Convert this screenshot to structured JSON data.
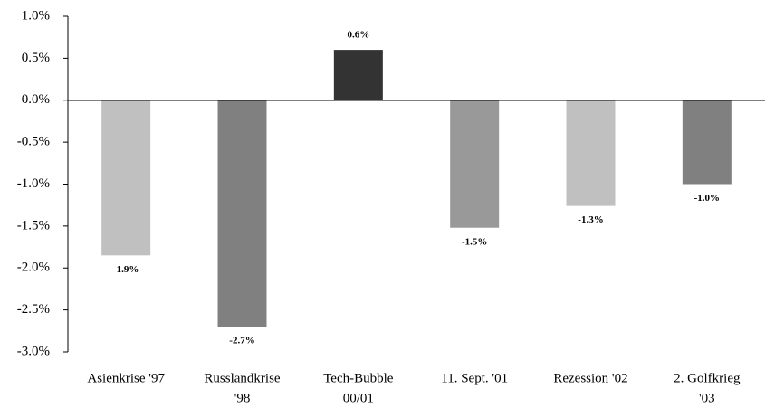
{
  "chart_data": {
    "type": "bar",
    "categories": [
      [
        "Asienkrise '97"
      ],
      [
        "Russlandkrise",
        "'98"
      ],
      [
        "Tech-Bubble",
        "00/01"
      ],
      [
        "11. Sept. '01"
      ],
      [
        "Rezession '02"
      ],
      [
        "2. Golfkrieg",
        "'03"
      ]
    ],
    "values": [
      -1.85,
      -2.7,
      0.6,
      -1.52,
      -1.26,
      -1.0
    ],
    "value_labels": [
      "-1.9%",
      "-2.7%",
      "0.6%",
      "-1.5%",
      "-1.3%",
      "-1.0%"
    ],
    "colors": [
      "#c0c0c0",
      "#808080",
      "#333333",
      "#999999",
      "#c0c0c0",
      "#808080"
    ],
    "ylim": [
      -3.0,
      1.0
    ],
    "yticks": [
      {
        "value": -3.0,
        "label": "-3.0%"
      },
      {
        "value": -2.5,
        "label": "-2.5%"
      },
      {
        "value": -2.0,
        "label": "-2.0%"
      },
      {
        "value": -1.5,
        "label": "-1.5%"
      },
      {
        "value": -1.0,
        "label": "-1.0%"
      },
      {
        "value": -0.5,
        "label": "-0.5%"
      },
      {
        "value": 0.0,
        "label": "0.0%"
      },
      {
        "value": 0.5,
        "label": "0.5%"
      },
      {
        "value": 1.0,
        "label": "1.0%"
      }
    ],
    "grid": false
  }
}
